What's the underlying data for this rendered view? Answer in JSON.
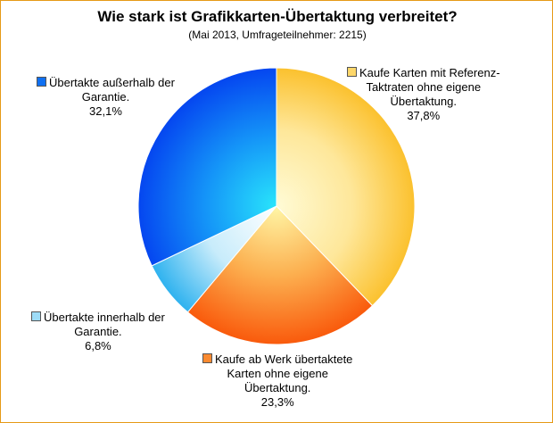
{
  "chart_data": {
    "type": "pie",
    "title": "Wie stark ist Grafikkarten-Übertaktung verbreitet?",
    "subtitle": "(Mai 2013, Umfrageteilnehmer: 2215)",
    "slices": [
      {
        "lines": [
          "Kaufe Karten mit Referenz-",
          "Taktraten ohne eigene",
          "Übertaktung."
        ],
        "value_label": "37,8%",
        "value": 37.8,
        "color": "#fbc531"
      },
      {
        "lines": [
          "Kaufe ab Werk übertaktete",
          "Karten ohne eigene",
          "Übertaktung."
        ],
        "value_label": "23,3%",
        "value": 23.3,
        "color": "#fa6a10"
      },
      {
        "lines": [
          "Übertakte innerhalb der",
          "Garantie."
        ],
        "value_label": "6,8%",
        "value": 6.8,
        "color": "#3cb9f0"
      },
      {
        "lines": [
          "Übertakte außerhalb der",
          "Garantie."
        ],
        "value_label": "32,1%",
        "value": 32.1,
        "color": "#0a55f0"
      }
    ]
  }
}
